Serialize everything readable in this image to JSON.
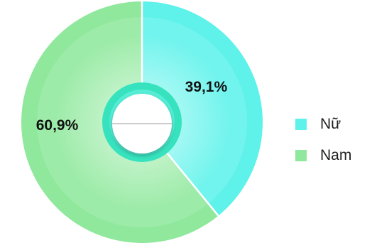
{
  "chart_data": {
    "type": "pie",
    "categories": [
      "Nữ",
      "Nam"
    ],
    "values": [
      39.1,
      60.9
    ],
    "value_labels": [
      "39,1%",
      "60,9%"
    ],
    "colors": [
      "#5ef2ea",
      "#8fe89c"
    ],
    "legend_position": "right"
  }
}
